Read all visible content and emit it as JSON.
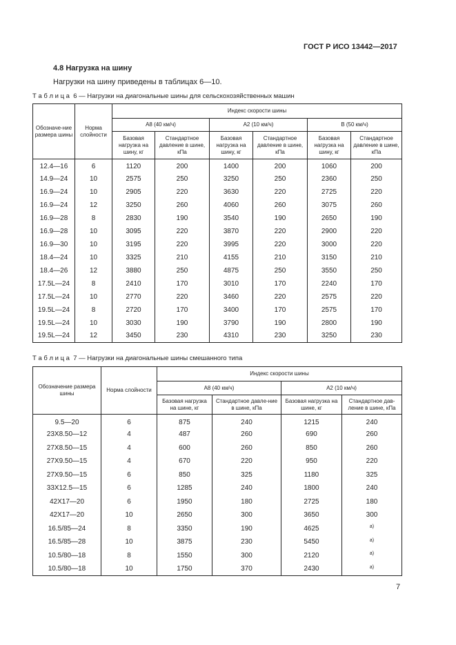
{
  "header": {
    "code": "ГОСТ Р ИСО 13442—2017"
  },
  "section": {
    "title": "4.8 Нагрузка на шину",
    "text": "Нагрузки на шину приведены в таблицах 6—10."
  },
  "table6": {
    "label": "Т а б л и ц а  6",
    "caption": "— Нагрузки на диагональные шины для сельскохозяйственных машин",
    "head": {
      "size": "Обозначе-ние размера шины",
      "ply": "Норма слойности",
      "group": "Индекс скорости шины",
      "speeds": [
        "A8 (40 км/ч)",
        "A2 (10 км/ч)",
        "B (50 км/ч)"
      ],
      "subs": [
        "Базовая нагрузка на шину, кг",
        "Стандартное давление в шине, кПа",
        "Базовая нагрузка на шину, кг",
        "Стандартное давление в шине, кПа",
        "Базовая нагрузка на шину, кг",
        "Стандартное давление в шине, кПа"
      ]
    },
    "rows": [
      [
        "12.4—16",
        "6",
        "1120",
        "200",
        "1400",
        "200",
        "1060",
        "200"
      ],
      [
        "14.9—24",
        "10",
        "2575",
        "250",
        "3250",
        "250",
        "2360",
        "250"
      ],
      [
        "16.9—24",
        "10",
        "2905",
        "220",
        "3630",
        "220",
        "2725",
        "220"
      ],
      [
        "16.9—24",
        "12",
        "3250",
        "260",
        "4060",
        "260",
        "3075",
        "260"
      ],
      [
        "16.9—28",
        "8",
        "2830",
        "190",
        "3540",
        "190",
        "2650",
        "190"
      ],
      [
        "16.9—28",
        "10",
        "3095",
        "220",
        "3870",
        "220",
        "2900",
        "220"
      ],
      [
        "16.9—30",
        "10",
        "3195",
        "220",
        "3995",
        "220",
        "3000",
        "220"
      ],
      [
        "18.4—24",
        "10",
        "3325",
        "210",
        "4155",
        "210",
        "3150",
        "210"
      ],
      [
        "18.4—26",
        "12",
        "3880",
        "250",
        "4875",
        "250",
        "3550",
        "250"
      ],
      [
        "17.5L—24",
        "8",
        "2410",
        "170",
        "3010",
        "170",
        "2240",
        "170"
      ],
      [
        "17.5L—24",
        "10",
        "2770",
        "220",
        "3460",
        "220",
        "2575",
        "220"
      ],
      [
        "19.5L—24",
        "8",
        "2720",
        "170",
        "3400",
        "170",
        "2575",
        "170"
      ],
      [
        "19.5L—24",
        "10",
        "3030",
        "190",
        "3790",
        "190",
        "2800",
        "190"
      ],
      [
        "19.5L—24",
        "12",
        "3450",
        "230",
        "4310",
        "230",
        "3250",
        "230"
      ]
    ]
  },
  "table7": {
    "label": "Т а б л и ц а  7",
    "caption": "— Нагрузки на диагональные шины смешанного типа",
    "head": {
      "size": "Обозначение размера шины",
      "ply": "Норма слойности",
      "group": "Индекс скорости шины",
      "speeds": [
        "A8 (40 км/ч)",
        "A2 (10 км/ч)"
      ],
      "subs": [
        "Базовая нагрузка на шине, кг",
        "Стандартное давле-ние в шине, кПа",
        "Базовая нагрузка на шине, кг",
        "Стандартное дав-ление в шине, кПа"
      ]
    },
    "rows": [
      [
        "9.5—20",
        "6",
        "875",
        "240",
        "1215",
        "240"
      ],
      [
        "23X8.50—12",
        "4",
        "487",
        "260",
        "690",
        "260"
      ],
      [
        "27X8.50—15",
        "4",
        "600",
        "260",
        "850",
        "260"
      ],
      [
        "27X9.50—15",
        "4",
        "670",
        "220",
        "950",
        "220"
      ],
      [
        "27X9.50—15",
        "6",
        "850",
        "325",
        "1180",
        "325"
      ],
      [
        "33X12.5—15",
        "6",
        "1285",
        "240",
        "1800",
        "240"
      ],
      [
        "42X17—20",
        "6",
        "1950",
        "180",
        "2725",
        "180"
      ],
      [
        "42X17—20",
        "10",
        "2650",
        "300",
        "3650",
        "300"
      ],
      [
        "16.5/85—24",
        "8",
        "3350",
        "190",
        "4625",
        "а)"
      ],
      [
        "16.5/85—28",
        "10",
        "3875",
        "230",
        "5450",
        "а)"
      ],
      [
        "10.5/80—18",
        "8",
        "1550",
        "300",
        "2120",
        "а)"
      ],
      [
        "10.5/80—18",
        "10",
        "1750",
        "370",
        "2430",
        "а)"
      ]
    ]
  },
  "footer": {
    "page": "7"
  }
}
